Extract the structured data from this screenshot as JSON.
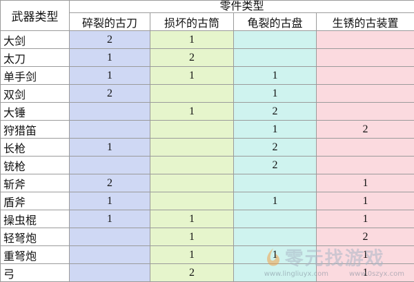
{
  "table": {
    "corner": "武器类型",
    "group_header": "零件类型",
    "columns": [
      "碎裂的古刀",
      "损坏的古筒",
      "龟裂的古盘",
      "生锈的古装置"
    ],
    "rows": [
      [
        "大剑",
        2,
        1,
        null,
        null
      ],
      [
        "太刀",
        1,
        2,
        null,
        null
      ],
      [
        "单手剑",
        1,
        1,
        1,
        null
      ],
      [
        "双剑",
        2,
        null,
        1,
        null
      ],
      [
        "大锤",
        null,
        1,
        2,
        null
      ],
      [
        "狩猎笛",
        null,
        null,
        1,
        2
      ],
      [
        "长枪",
        1,
        null,
        2,
        null
      ],
      [
        "铳枪",
        null,
        null,
        2,
        null
      ],
      [
        "斩斧",
        2,
        null,
        null,
        1
      ],
      [
        "盾斧",
        1,
        null,
        1,
        1
      ],
      [
        "操虫棍",
        1,
        1,
        null,
        1
      ],
      [
        "轻弩炮",
        null,
        1,
        null,
        2
      ],
      [
        "重弩炮",
        null,
        1,
        1,
        1
      ],
      [
        "弓",
        null,
        2,
        null,
        1
      ]
    ]
  },
  "watermark": {
    "brand": "零元找游戏",
    "urls": [
      "www.lingliuyx.com",
      "www.0szyx.com"
    ]
  }
}
